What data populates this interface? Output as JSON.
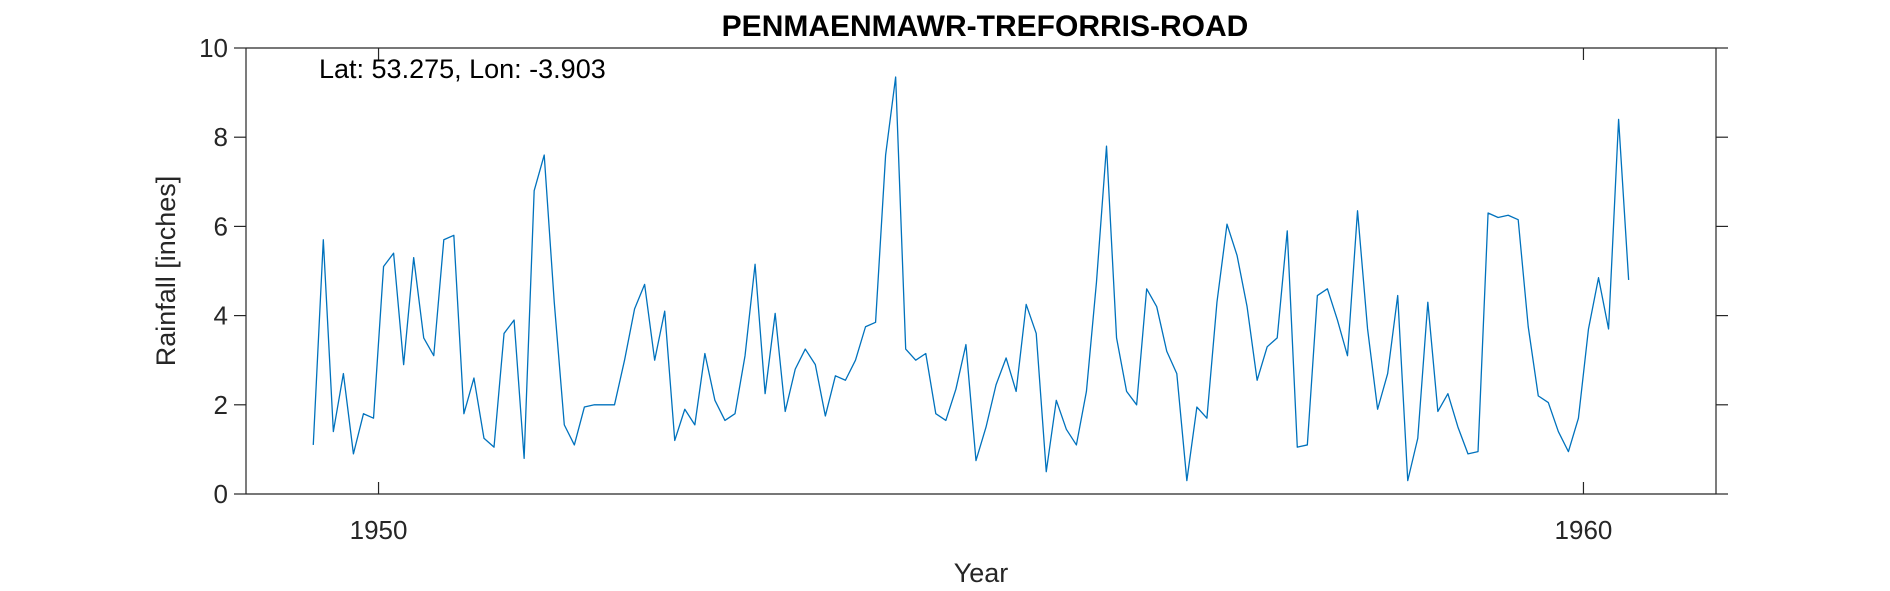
{
  "chart_data": {
    "type": "line",
    "title": "PENMAENMAWR-TREFORRIS-ROAD",
    "xlabel": "Year",
    "ylabel": "Rainfall [inches]",
    "annotation": "Lat: 53.275, Lon: -3.903",
    "xlim": [
      1948.9,
      1961.1
    ],
    "ylim": [
      0,
      10
    ],
    "xticks": [
      1950,
      1960
    ],
    "xtick_labels": [
      "1950",
      "1960"
    ],
    "yticks": [
      0,
      2,
      4,
      6,
      8,
      10
    ],
    "ytick_labels": [
      "0",
      "2",
      "4",
      "6",
      "8",
      "10"
    ],
    "grid": false,
    "x_start": 1949.4583,
    "x_step_months": 1,
    "series": [
      {
        "color": "#0072BD",
        "values": [
          1.1,
          5.7,
          1.4,
          2.7,
          0.9,
          1.8,
          1.7,
          5.1,
          5.4,
          2.9,
          5.3,
          3.5,
          3.1,
          5.7,
          5.8,
          1.8,
          2.6,
          1.25,
          1.05,
          3.6,
          3.9,
          0.8,
          6.8,
          7.6,
          4.3,
          1.55,
          1.1,
          1.95,
          2.0,
          2.0,
          2.0,
          3.0,
          4.15,
          4.7,
          3.0,
          4.1,
          1.2,
          1.9,
          1.55,
          3.15,
          2.1,
          1.65,
          1.8,
          3.1,
          5.15,
          2.25,
          4.05,
          1.85,
          2.8,
          3.25,
          2.9,
          1.75,
          2.65,
          2.55,
          3.0,
          3.75,
          3.85,
          7.6,
          9.35,
          3.25,
          3.0,
          3.15,
          1.8,
          1.65,
          2.35,
          3.35,
          0.75,
          1.5,
          2.45,
          3.05,
          2.3,
          4.25,
          3.6,
          0.5,
          2.1,
          1.45,
          1.1,
          2.3,
          4.75,
          7.8,
          3.5,
          2.3,
          2.0,
          4.6,
          4.2,
          3.2,
          2.7,
          0.3,
          1.95,
          1.7,
          4.3,
          6.05,
          5.35,
          4.2,
          2.55,
          3.3,
          3.5,
          5.9,
          1.05,
          1.1,
          4.45,
          4.6,
          3.9,
          3.1,
          6.35,
          3.7,
          1.9,
          2.7,
          4.45,
          0.3,
          1.25,
          4.3,
          1.85,
          2.25,
          1.5,
          0.9,
          0.95,
          6.3,
          6.2,
          6.25,
          6.15,
          3.75,
          2.2,
          2.05,
          1.4,
          0.95,
          1.7,
          3.7,
          4.85,
          3.7,
          8.4,
          4.8
        ]
      }
    ]
  }
}
